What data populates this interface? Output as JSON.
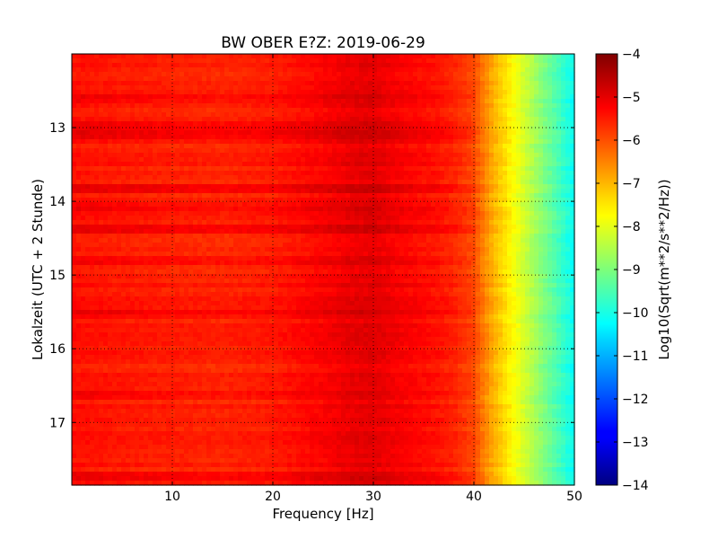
{
  "chart_data": {
    "type": "heatmap",
    "title": "BW OBER E?Z: 2019-06-29",
    "xlabel": "Frequency [Hz]",
    "ylabel": "Lokalzeit (UTC + 2 Stunde)",
    "xlim": [
      0,
      50
    ],
    "ylim": [
      12.0,
      17.85
    ],
    "y_inverted": true,
    "x_ticks": [
      10,
      20,
      30,
      40,
      50
    ],
    "x_tick_labels": [
      "10",
      "20",
      "30",
      "40",
      "50"
    ],
    "y_ticks": [
      13,
      14,
      15,
      16,
      17
    ],
    "y_tick_labels": [
      "13",
      "14",
      "15",
      "16",
      "17"
    ],
    "grid": true,
    "colormap": "jet",
    "colorbar": {
      "label": "Log10(Sqrt(m**2/s**2/Hz))",
      "min": -14,
      "max": -4,
      "ticks": [
        -4,
        -5,
        -6,
        -7,
        -8,
        -9,
        -10,
        -11,
        -12,
        -13,
        -14
      ],
      "tick_labels": [
        "−4",
        "−5",
        "−6",
        "−7",
        "−8",
        "−9",
        "−10",
        "−11",
        "−12",
        "−13",
        "−14"
      ]
    },
    "spectrum_profile": {
      "frequency_hz": [
        0,
        5,
        10,
        15,
        20,
        25,
        28,
        30,
        33,
        36,
        38,
        40,
        41,
        42,
        43,
        44,
        45,
        46,
        47,
        48,
        49,
        50
      ],
      "log10_amplitude": [
        -5.4,
        -5.5,
        -5.55,
        -5.6,
        -5.5,
        -5.25,
        -5.05,
        -5.0,
        -5.25,
        -5.4,
        -5.6,
        -5.95,
        -6.5,
        -7.0,
        -7.4,
        -7.8,
        -8.2,
        -8.6,
        -9.0,
        -9.4,
        -9.8,
        -10.2
      ]
    },
    "highlighted_rows_time": [
      12.6,
      12.95,
      13.12,
      13.85,
      14.1,
      14.37,
      14.8,
      15.55,
      16.65,
      17.72
    ]
  }
}
